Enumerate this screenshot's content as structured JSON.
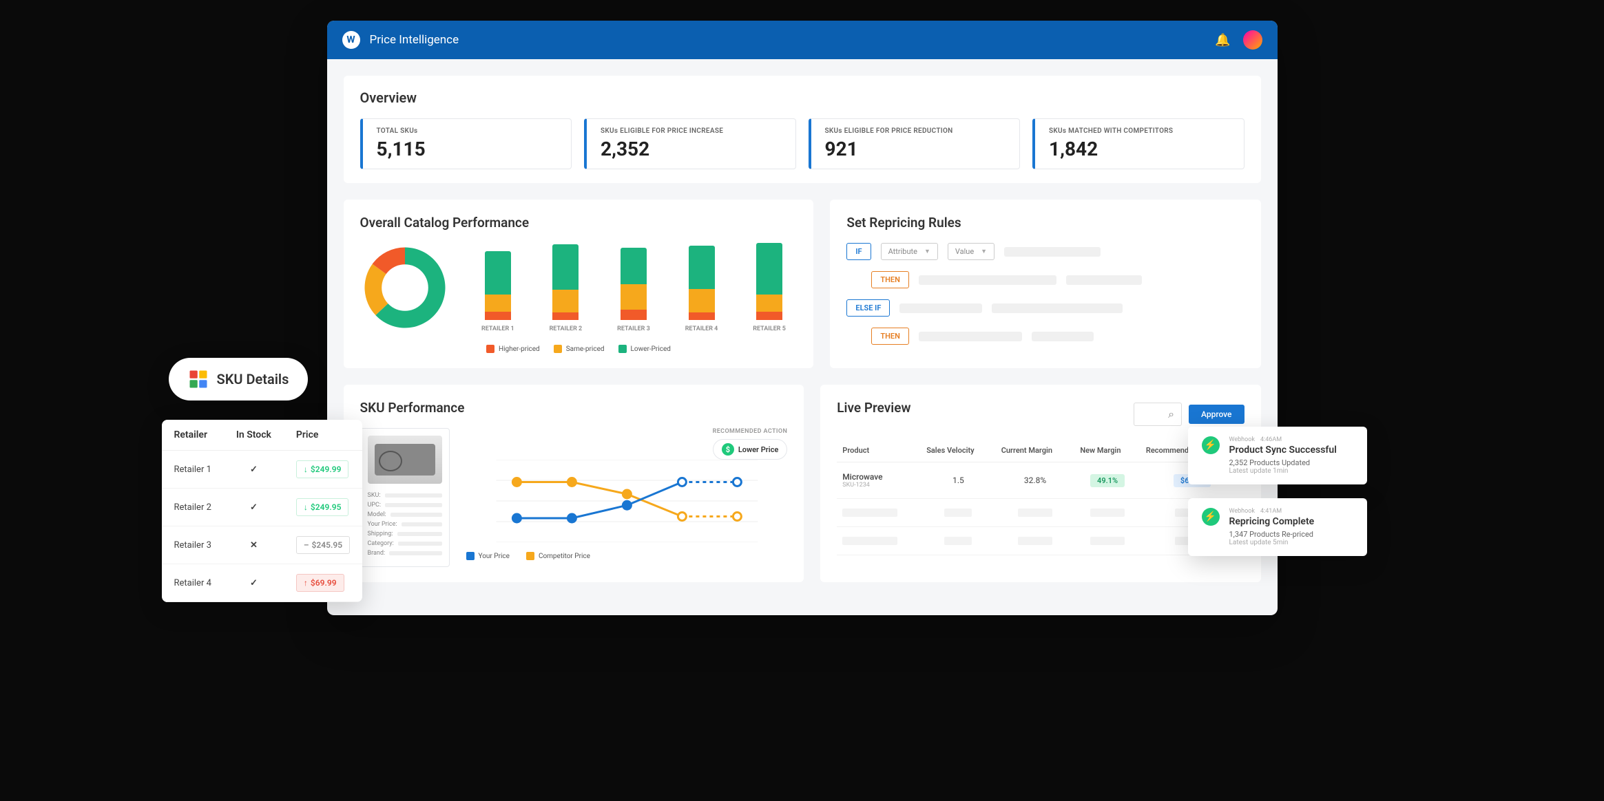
{
  "header": {
    "title": "Price Intelligence",
    "logo_letter": "W"
  },
  "overview": {
    "title": "Overview",
    "kpis": [
      {
        "label": "TOTAL SKUs",
        "value": "5,115"
      },
      {
        "label": "SKUs ELIGIBLE FOR PRICE INCREASE",
        "value": "2,352"
      },
      {
        "label": "SKUs ELIGIBLE FOR PRICE REDUCTION",
        "value": "921"
      },
      {
        "label": "SKUs MATCHED WITH COMPETITORS",
        "value": "1,842"
      }
    ],
    "accent_color": "#1976d2"
  },
  "catalog": {
    "title": "Overall Catalog Performance",
    "colors": {
      "higher": "#f15a29",
      "same": "#f6a81c",
      "lower": "#1cb37e"
    },
    "donut": {
      "higher": 0.15,
      "same": 0.22,
      "lower": 0.63,
      "inner_radius": 0.58
    },
    "bars": [
      {
        "label": "RETAILER 1",
        "higher": 12,
        "same": 25,
        "lower": 63,
        "total_h": 100
      },
      {
        "label": "RETAILER 2",
        "higher": 10,
        "same": 30,
        "lower": 60,
        "total_h": 110
      },
      {
        "label": "RETAILER 3",
        "higher": 14,
        "same": 36,
        "lower": 50,
        "total_h": 105
      },
      {
        "label": "RETAILER 4",
        "higher": 10,
        "same": 32,
        "lower": 58,
        "total_h": 108
      },
      {
        "label": "RETAILER 5",
        "higher": 11,
        "same": 22,
        "lower": 67,
        "total_h": 112
      }
    ],
    "legend": [
      {
        "label": "Higher-priced",
        "color_key": "higher"
      },
      {
        "label": "Same-priced",
        "color_key": "same"
      },
      {
        "label": "Lower-Priced",
        "color_key": "lower"
      }
    ]
  },
  "repricing": {
    "title": "Set Repricing Rules",
    "tags": {
      "if": "IF",
      "then": "THEN",
      "elseif": "ELSE IF"
    },
    "attribute_placeholder": "Attribute",
    "value_placeholder": "Value"
  },
  "sku_perf": {
    "title": "SKU Performance",
    "rec_action_label": "RECOMMENDED ACTION",
    "rec_action": "Lower Price",
    "meta_labels": [
      "SKU:",
      "UPC:",
      "Model:",
      "Your Price:",
      "Shipping:",
      "Category:",
      "Brand:"
    ],
    "legend": [
      {
        "label": "Your Price",
        "color": "#1976d2"
      },
      {
        "label": "Competitor Price",
        "color": "#f6a81c"
      }
    ],
    "chart": {
      "type": "line",
      "x": [
        0,
        1,
        2,
        3,
        4
      ],
      "your_price": [
        20,
        20,
        35,
        62,
        62
      ],
      "competitor_price": [
        62,
        62,
        48,
        22,
        22
      ],
      "dash_from_index": 3,
      "marker": "circle",
      "line_width": 3,
      "bg": "#ffffff",
      "grid_color": "#eeeeee"
    }
  },
  "preview": {
    "title": "Live Preview",
    "approve_label": "Approve",
    "columns": [
      "Product",
      "Sales Velocity",
      "Current Margin",
      "New Margin",
      "Recommended Price"
    ],
    "rows": [
      {
        "product": "Microwave",
        "sku": "SKU-1234",
        "velocity": "1.5",
        "current_margin": "32.8%",
        "new_margin": "49.1%",
        "rec_price": "$63.99"
      }
    ]
  },
  "sku_details_badge": {
    "label": "SKU Details"
  },
  "retailers": {
    "columns": [
      "Retailer",
      "In Stock",
      "Price"
    ],
    "rows": [
      {
        "name": "Retailer 1",
        "in_stock": true,
        "price": "$249.99",
        "trend": "down",
        "style": "green"
      },
      {
        "name": "Retailer 2",
        "in_stock": true,
        "price": "$249.95",
        "trend": "down",
        "style": "green"
      },
      {
        "name": "Retailer 3",
        "in_stock": false,
        "price": "$245.95",
        "trend": "flat",
        "style": "grey"
      },
      {
        "name": "Retailer 4",
        "in_stock": true,
        "price": "$69.99",
        "trend": "up",
        "style": "red"
      }
    ]
  },
  "toasts": [
    {
      "source": "Webhook",
      "time": "4:46AM",
      "title": "Product Sync Successful",
      "sub": "2,352 Products Updated",
      "when": "Latest update 1min"
    },
    {
      "source": "Webhook",
      "time": "4:41AM",
      "title": "Repricing Complete",
      "sub": "1,347 Products Re-priced",
      "when": "Latest update 5min"
    }
  ]
}
